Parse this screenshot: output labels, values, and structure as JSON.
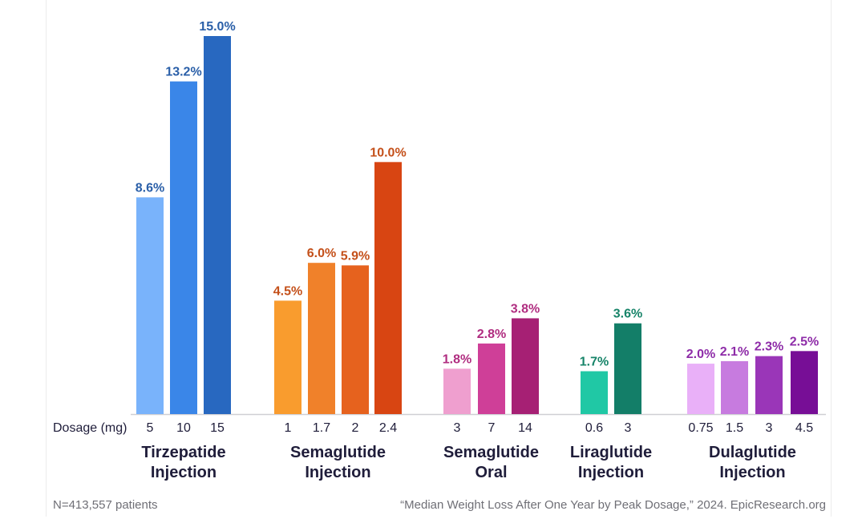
{
  "chart_data": {
    "type": "bar",
    "title": "Median Weight Loss After One Year by Peak Dosage",
    "xlabel": "Dosage (mg)",
    "ylabel": "",
    "ylim": [
      0,
      15
    ],
    "grid": false,
    "groups": [
      {
        "name_line1": "Tirzepatide",
        "name_line2": "Injection",
        "label_color": "#2a5fa8",
        "bars": [
          {
            "dose": "5",
            "value": 8.6,
            "label": "8.6%",
            "color": "#79b3fb"
          },
          {
            "dose": "10",
            "value": 13.2,
            "label": "13.2%",
            "color": "#3a86e8"
          },
          {
            "dose": "15",
            "value": 15.0,
            "label": "15.0%",
            "color": "#2868c0"
          }
        ]
      },
      {
        "name_line1": "Semaglutide",
        "name_line2": "Injection",
        "label_color": "#c4501a",
        "bars": [
          {
            "dose": "1",
            "value": 4.5,
            "label": "4.5%",
            "color": "#f99c2e"
          },
          {
            "dose": "1.7",
            "value": 6.0,
            "label": "6.0%",
            "color": "#f0812a"
          },
          {
            "dose": "2",
            "value": 5.9,
            "label": "5.9%",
            "color": "#e6621e"
          },
          {
            "dose": "2.4",
            "value": 10.0,
            "label": "10.0%",
            "color": "#d84512"
          }
        ]
      },
      {
        "name_line1": "Semaglutide",
        "name_line2": "Oral",
        "label_color": "#b02d80",
        "bars": [
          {
            "dose": "3",
            "value": 1.8,
            "label": "1.8%",
            "color": "#ef9fcf"
          },
          {
            "dose": "7",
            "value": 2.8,
            "label": "2.8%",
            "color": "#cf3f98"
          },
          {
            "dose": "14",
            "value": 3.8,
            "label": "3.8%",
            "color": "#a62074"
          }
        ]
      },
      {
        "name_line1": "Liraglutide",
        "name_line2": "Injection",
        "label_color": "#178469",
        "bars": [
          {
            "dose": "0.6",
            "value": 1.7,
            "label": "1.7%",
            "color": "#20c8a5"
          },
          {
            "dose": "3",
            "value": 3.6,
            "label": "3.6%",
            "color": "#137e68"
          }
        ]
      },
      {
        "name_line1": "Dulaglutide",
        "name_line2": "Injection",
        "label_color": "#8e2ca8",
        "bars": [
          {
            "dose": "0.75",
            "value": 2.0,
            "label": "2.0%",
            "color": "#e9b0f8"
          },
          {
            "dose": "1.5",
            "value": 2.1,
            "label": "2.1%",
            "color": "#c77bdf"
          },
          {
            "dose": "3",
            "value": 2.3,
            "label": "2.3%",
            "color": "#9a36b8"
          },
          {
            "dose": "4.5",
            "value": 2.5,
            "label": "2.5%",
            "color": "#770e96"
          }
        ]
      }
    ]
  },
  "footer": {
    "sample": "N=413,557 patients",
    "source": "“Median Weight Loss After One Year by Peak Dosage,” 2024. EpicResearch.org"
  }
}
